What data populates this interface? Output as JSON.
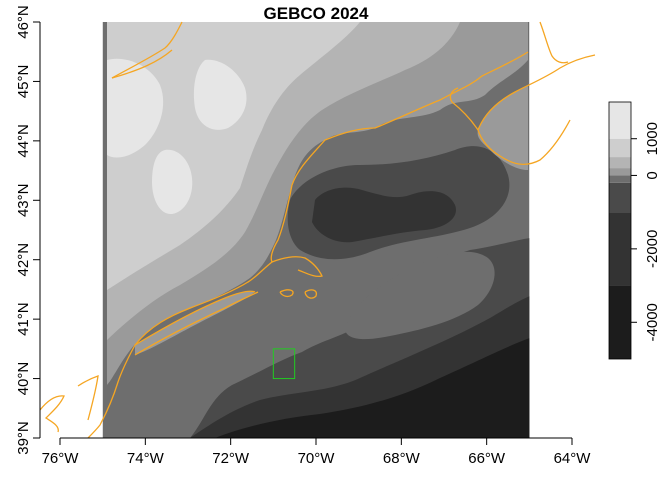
{
  "map": {
    "title": "GEBCO 2024",
    "lon_range": [
      -76.0,
      -64.0
    ],
    "lat_range": [
      39.0,
      46.0
    ],
    "raster_extent": {
      "lon": [
        -75.0,
        -65.0
      ],
      "lat": [
        39.0,
        46.0
      ]
    },
    "x_ticks": [
      {
        "value": -76,
        "label": "76°W"
      },
      {
        "value": -74,
        "label": "74°W"
      },
      {
        "value": -72,
        "label": "72°W"
      },
      {
        "value": -70,
        "label": "70°W"
      },
      {
        "value": -68,
        "label": "68°W"
      },
      {
        "value": -66,
        "label": "66°W"
      },
      {
        "value": -64,
        "label": "64°W"
      }
    ],
    "y_ticks": [
      {
        "value": 39,
        "label": "39°N"
      },
      {
        "value": 40,
        "label": "40°N"
      },
      {
        "value": 41,
        "label": "41°N"
      },
      {
        "value": 42,
        "label": "42°N"
      },
      {
        "value": 43,
        "label": "43°N"
      },
      {
        "value": 44,
        "label": "44°N"
      },
      {
        "value": 45,
        "label": "45°N"
      },
      {
        "value": 46,
        "label": "46°N"
      }
    ],
    "coastline_color": "#f5a623",
    "study_box": {
      "lon": [
        -71.0,
        -70.5
      ],
      "lat": [
        40.0,
        40.5
      ],
      "color": "#22cc22"
    },
    "colorbar": {
      "range": [
        -5000,
        2000
      ],
      "ticks": [
        {
          "value": 1000,
          "label": "1000"
        },
        {
          "value": 0,
          "label": "0"
        },
        {
          "value": -2000,
          "label": "-2000"
        },
        {
          "value": -4000,
          "label": "-4000"
        }
      ],
      "bands": [
        {
          "from": -5000,
          "to": -3000,
          "color": "#1c1c1c"
        },
        {
          "from": -3000,
          "to": -1000,
          "color": "#333333"
        },
        {
          "from": -1000,
          "to": -200,
          "color": "#4a4a4a"
        },
        {
          "from": -200,
          "to": 0,
          "color": "#6e6e6e"
        },
        {
          "from": 0,
          "to": 200,
          "color": "#9a9a9a"
        },
        {
          "from": 200,
          "to": 500,
          "color": "#b4b4b4"
        },
        {
          "from": 500,
          "to": 1000,
          "color": "#cecece"
        },
        {
          "from": 1000,
          "to": 2000,
          "color": "#e6e6e6"
        }
      ]
    }
  }
}
